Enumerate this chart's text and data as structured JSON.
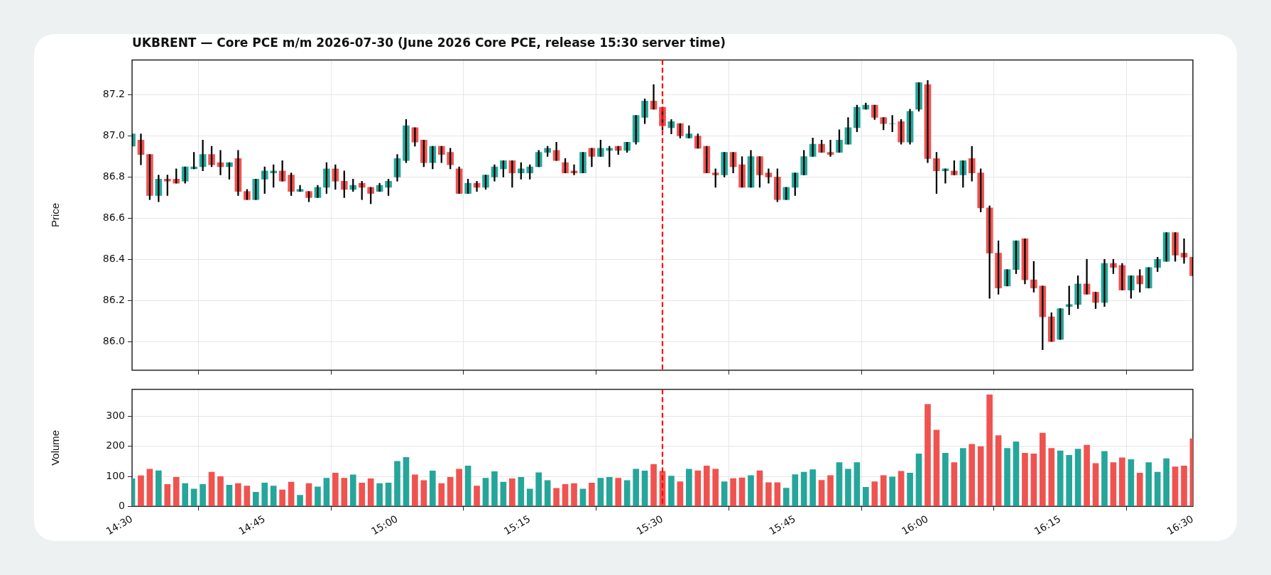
{
  "chart_data": [
    {
      "type": "candlestick",
      "title": "UKBRENT — Core PCE m/m 2026-07-30 (June 2026 Core PCE, release 15:30 server time)",
      "ylabel": "Price",
      "x": [
        "2026-07-30T14:30",
        "2026-07-30T14:31",
        "2026-07-30T14:32",
        "2026-07-30T14:33",
        "2026-07-30T14:34",
        "2026-07-30T14:35",
        "2026-07-30T14:36",
        "2026-07-30T14:37",
        "2026-07-30T14:38",
        "2026-07-30T14:39",
        "2026-07-30T14:40",
        "2026-07-30T14:41",
        "2026-07-30T14:42",
        "2026-07-30T14:43",
        "2026-07-30T14:44",
        "2026-07-30T14:45",
        "2026-07-30T14:46",
        "2026-07-30T14:47",
        "2026-07-30T14:48",
        "2026-07-30T14:49",
        "2026-07-30T14:50",
        "2026-07-30T14:51",
        "2026-07-30T14:52",
        "2026-07-30T14:53",
        "2026-07-30T14:54",
        "2026-07-30T14:55",
        "2026-07-30T14:56",
        "2026-07-30T14:57",
        "2026-07-30T14:58",
        "2026-07-30T14:59",
        "2026-07-30T15:00",
        "2026-07-30T15:01",
        "2026-07-30T15:02",
        "2026-07-30T15:03",
        "2026-07-30T15:04",
        "2026-07-30T15:05",
        "2026-07-30T15:06",
        "2026-07-30T15:07",
        "2026-07-30T15:08",
        "2026-07-30T15:09",
        "2026-07-30T15:10",
        "2026-07-30T15:11",
        "2026-07-30T15:12",
        "2026-07-30T15:13",
        "2026-07-30T15:14",
        "2026-07-30T15:15",
        "2026-07-30T15:16",
        "2026-07-30T15:17",
        "2026-07-30T15:18",
        "2026-07-30T15:19",
        "2026-07-30T15:20",
        "2026-07-30T15:21",
        "2026-07-30T15:22",
        "2026-07-30T15:23",
        "2026-07-30T15:24",
        "2026-07-30T15:25",
        "2026-07-30T15:26",
        "2026-07-30T15:27",
        "2026-07-30T15:28",
        "2026-07-30T15:29",
        "2026-07-30T15:30",
        "2026-07-30T15:31",
        "2026-07-30T15:32",
        "2026-07-30T15:33",
        "2026-07-30T15:34",
        "2026-07-30T15:35",
        "2026-07-30T15:36",
        "2026-07-30T15:37",
        "2026-07-30T15:38",
        "2026-07-30T15:39",
        "2026-07-30T15:40",
        "2026-07-30T15:41",
        "2026-07-30T15:42",
        "2026-07-30T15:43",
        "2026-07-30T15:44",
        "2026-07-30T15:45",
        "2026-07-30T15:46",
        "2026-07-30T15:47",
        "2026-07-30T15:48",
        "2026-07-30T15:49",
        "2026-07-30T15:50",
        "2026-07-30T15:51",
        "2026-07-30T15:52",
        "2026-07-30T15:53",
        "2026-07-30T15:54",
        "2026-07-30T15:55",
        "2026-07-30T15:56",
        "2026-07-30T15:57",
        "2026-07-30T15:58",
        "2026-07-30T15:59",
        "2026-07-30T16:00",
        "2026-07-30T16:01",
        "2026-07-30T16:02",
        "2026-07-30T16:03",
        "2026-07-30T16:04",
        "2026-07-30T16:05",
        "2026-07-30T16:06",
        "2026-07-30T16:07",
        "2026-07-30T16:08",
        "2026-07-30T16:09",
        "2026-07-30T16:10",
        "2026-07-30T16:11",
        "2026-07-30T16:12",
        "2026-07-30T16:13",
        "2026-07-30T16:14",
        "2026-07-30T16:15",
        "2026-07-30T16:16",
        "2026-07-30T16:17",
        "2026-07-30T16:18",
        "2026-07-30T16:19",
        "2026-07-30T16:20",
        "2026-07-30T16:21",
        "2026-07-30T16:22",
        "2026-07-30T16:23",
        "2026-07-30T16:24",
        "2026-07-30T16:25",
        "2026-07-30T16:26",
        "2026-07-30T16:27",
        "2026-07-30T16:28",
        "2026-07-30T16:29",
        "2026-07-30T16:30"
      ],
      "ohlc": [
        [
          86.95,
          87.01,
          86.95,
          87.01
        ],
        [
          86.98,
          87.01,
          86.86,
          86.91
        ],
        [
          86.91,
          86.91,
          86.69,
          86.71
        ],
        [
          86.71,
          86.81,
          86.68,
          86.79
        ],
        [
          86.79,
          86.81,
          86.71,
          86.78
        ],
        [
          86.79,
          86.84,
          86.77,
          86.77
        ],
        [
          86.78,
          86.85,
          86.77,
          86.85
        ],
        [
          86.84,
          86.92,
          86.84,
          86.85
        ],
        [
          86.85,
          86.98,
          86.83,
          86.91
        ],
        [
          86.91,
          86.95,
          86.85,
          86.86
        ],
        [
          86.87,
          86.93,
          86.81,
          86.85
        ],
        [
          86.85,
          86.87,
          86.79,
          86.87
        ],
        [
          86.89,
          86.93,
          86.71,
          86.73
        ],
        [
          86.73,
          86.74,
          86.69,
          86.69
        ],
        [
          86.69,
          86.79,
          86.69,
          86.79
        ],
        [
          86.79,
          86.85,
          86.72,
          86.83
        ],
        [
          86.82,
          86.86,
          86.75,
          86.83
        ],
        [
          86.83,
          86.88,
          86.78,
          86.78
        ],
        [
          86.81,
          86.82,
          86.71,
          86.73
        ],
        [
          86.73,
          86.76,
          86.73,
          86.74
        ],
        [
          86.73,
          86.73,
          86.68,
          86.7
        ],
        [
          86.7,
          86.76,
          86.7,
          86.75
        ],
        [
          86.75,
          86.87,
          86.72,
          86.84
        ],
        [
          86.84,
          86.86,
          86.74,
          86.78
        ],
        [
          86.78,
          86.83,
          86.7,
          86.74
        ],
        [
          86.74,
          86.79,
          86.73,
          86.76
        ],
        [
          86.77,
          86.78,
          86.69,
          86.75
        ],
        [
          86.75,
          86.75,
          86.67,
          86.72
        ],
        [
          86.73,
          86.77,
          86.73,
          86.76
        ],
        [
          86.75,
          86.79,
          86.71,
          86.78
        ],
        [
          86.8,
          86.91,
          86.78,
          86.89
        ],
        [
          86.88,
          87.08,
          86.87,
          87.05
        ],
        [
          87.04,
          87.04,
          86.95,
          86.97
        ],
        [
          86.98,
          86.98,
          86.85,
          86.87
        ],
        [
          86.87,
          86.95,
          86.84,
          86.95
        ],
        [
          86.95,
          86.95,
          86.87,
          86.91
        ],
        [
          86.92,
          86.94,
          86.84,
          86.86
        ],
        [
          86.84,
          86.85,
          86.72,
          86.72
        ],
        [
          86.72,
          86.79,
          86.72,
          86.77
        ],
        [
          86.77,
          86.78,
          86.73,
          86.75
        ],
        [
          86.75,
          86.81,
          86.74,
          86.81
        ],
        [
          86.8,
          86.86,
          86.78,
          86.85
        ],
        [
          86.84,
          86.88,
          86.8,
          86.88
        ],
        [
          86.88,
          86.88,
          86.75,
          86.82
        ],
        [
          86.82,
          86.87,
          86.79,
          86.84
        ],
        [
          86.82,
          86.86,
          86.79,
          86.85
        ],
        [
          86.85,
          86.93,
          86.85,
          86.92
        ],
        [
          86.92,
          86.95,
          86.9,
          86.94
        ],
        [
          86.93,
          86.97,
          86.88,
          86.88
        ],
        [
          86.87,
          86.89,
          86.82,
          86.82
        ],
        [
          86.83,
          86.86,
          86.81,
          86.82
        ],
        [
          86.82,
          86.92,
          86.82,
          86.92
        ],
        [
          86.94,
          86.94,
          86.85,
          86.9
        ],
        [
          86.9,
          86.98,
          86.9,
          86.94
        ],
        [
          86.93,
          86.95,
          86.85,
          86.94
        ],
        [
          86.95,
          86.95,
          86.91,
          86.93
        ],
        [
          86.93,
          86.97,
          86.92,
          86.97
        ],
        [
          86.97,
          87.1,
          86.96,
          87.1
        ],
        [
          87.09,
          87.18,
          87.06,
          87.17
        ],
        [
          87.17,
          87.25,
          87.13,
          87.13
        ],
        [
          87.14,
          87.14,
          87.03,
          87.05
        ],
        [
          87.04,
          87.08,
          87.01,
          87.07
        ],
        [
          87.06,
          87.06,
          86.99,
          87.0
        ],
        [
          86.99,
          87.05,
          86.99,
          87.01
        ],
        [
          87.0,
          87.01,
          86.94,
          86.94
        ],
        [
          86.95,
          86.95,
          86.82,
          86.82
        ],
        [
          86.82,
          86.84,
          86.75,
          86.81
        ],
        [
          86.81,
          86.92,
          86.8,
          86.92
        ],
        [
          86.92,
          86.92,
          86.82,
          86.85
        ],
        [
          86.86,
          86.9,
          86.75,
          86.75
        ],
        [
          86.75,
          86.93,
          86.75,
          86.9
        ],
        [
          86.9,
          86.9,
          86.75,
          86.81
        ],
        [
          86.82,
          86.84,
          86.77,
          86.8
        ],
        [
          86.8,
          86.84,
          86.68,
          86.69
        ],
        [
          86.69,
          86.75,
          86.69,
          86.75
        ],
        [
          86.75,
          86.82,
          86.71,
          86.82
        ],
        [
          86.81,
          86.93,
          86.81,
          86.9
        ],
        [
          86.9,
          86.99,
          86.9,
          86.96
        ],
        [
          86.96,
          86.98,
          86.92,
          86.92
        ],
        [
          86.92,
          86.98,
          86.9,
          86.91
        ],
        [
          86.92,
          87.03,
          86.92,
          86.98
        ],
        [
          86.96,
          87.09,
          86.96,
          87.04
        ],
        [
          87.04,
          87.15,
          87.02,
          87.14
        ],
        [
          87.13,
          87.16,
          87.13,
          87.15
        ],
        [
          87.15,
          87.15,
          87.08,
          87.09
        ],
        [
          87.09,
          87.09,
          87.03,
          87.06
        ],
        [
          87.06,
          87.1,
          87.02,
          87.06
        ],
        [
          87.07,
          87.08,
          86.96,
          86.97
        ],
        [
          86.97,
          87.13,
          86.96,
          87.12
        ],
        [
          87.13,
          87.26,
          87.12,
          87.26
        ],
        [
          87.25,
          87.27,
          86.87,
          86.89
        ],
        [
          86.89,
          86.92,
          86.72,
          86.83
        ],
        [
          86.83,
          86.84,
          86.77,
          86.84
        ],
        [
          86.83,
          86.88,
          86.81,
          86.81
        ],
        [
          86.81,
          86.88,
          86.75,
          86.88
        ],
        [
          86.89,
          86.95,
          86.78,
          86.82
        ],
        [
          86.82,
          86.84,
          86.63,
          86.65
        ],
        [
          86.65,
          86.66,
          86.21,
          86.43
        ],
        [
          86.43,
          86.49,
          86.23,
          86.26
        ],
        [
          86.27,
          86.35,
          86.27,
          86.35
        ],
        [
          86.35,
          86.49,
          86.33,
          86.49
        ],
        [
          86.5,
          86.5,
          86.28,
          86.3
        ],
        [
          86.3,
          86.39,
          86.24,
          86.26
        ],
        [
          86.27,
          86.27,
          85.96,
          86.12
        ],
        [
          86.12,
          86.14,
          86.0,
          86.0
        ],
        [
          86.01,
          86.16,
          86.01,
          86.16
        ],
        [
          86.17,
          86.27,
          86.13,
          86.18
        ],
        [
          86.18,
          86.32,
          86.16,
          86.28
        ],
        [
          86.28,
          86.4,
          86.23,
          86.23
        ],
        [
          86.24,
          86.24,
          86.16,
          86.19
        ],
        [
          86.19,
          86.4,
          86.17,
          86.38
        ],
        [
          86.38,
          86.4,
          86.33,
          86.36
        ],
        [
          86.37,
          86.38,
          86.25,
          86.25
        ],
        [
          86.25,
          86.32,
          86.21,
          86.32
        ],
        [
          86.32,
          86.35,
          86.24,
          86.28
        ],
        [
          86.26,
          86.36,
          86.26,
          86.36
        ],
        [
          86.36,
          86.41,
          86.34,
          86.4
        ],
        [
          86.39,
          86.53,
          86.39,
          86.53
        ],
        [
          86.53,
          86.53,
          86.39,
          86.42
        ],
        [
          86.43,
          86.5,
          86.38,
          86.41
        ],
        [
          86.41,
          86.41,
          86.32,
          86.32
        ]
      ],
      "colors": [
        "#26a69a",
        "#ef5350",
        "#ef5350",
        "#26a69a",
        "#ef5350",
        "#ef5350",
        "#26a69a",
        "#26a69a",
        "#26a69a",
        "#ef5350",
        "#ef5350",
        "#26a69a",
        "#ef5350",
        "#ef5350",
        "#26a69a",
        "#26a69a",
        "#26a69a",
        "#ef5350",
        "#ef5350",
        "#26a69a",
        "#ef5350",
        "#26a69a",
        "#26a69a",
        "#ef5350",
        "#ef5350",
        "#26a69a",
        "#ef5350",
        "#ef5350",
        "#26a69a",
        "#26a69a",
        "#26a69a",
        "#26a69a",
        "#ef5350",
        "#ef5350",
        "#26a69a",
        "#ef5350",
        "#ef5350",
        "#ef5350",
        "#26a69a",
        "#ef5350",
        "#26a69a",
        "#26a69a",
        "#26a69a",
        "#ef5350",
        "#26a69a",
        "#26a69a",
        "#26a69a",
        "#26a69a",
        "#ef5350",
        "#ef5350",
        "#ef5350",
        "#26a69a",
        "#ef5350",
        "#26a69a",
        "#26a69a",
        "#ef5350",
        "#26a69a",
        "#26a69a",
        "#26a69a",
        "#ef5350",
        "#ef5350",
        "#26a69a",
        "#ef5350",
        "#26a69a",
        "#ef5350",
        "#ef5350",
        "#ef5350",
        "#26a69a",
        "#ef5350",
        "#ef5350",
        "#26a69a",
        "#ef5350",
        "#ef5350",
        "#ef5350",
        "#26a69a",
        "#26a69a",
        "#26a69a",
        "#26a69a",
        "#ef5350",
        "#ef5350",
        "#26a69a",
        "#26a69a",
        "#26a69a",
        "#26a69a",
        "#ef5350",
        "#ef5350",
        "#26a69a",
        "#ef5350",
        "#26a69a",
        "#26a69a",
        "#ef5350",
        "#ef5350",
        "#26a69a",
        "#ef5350",
        "#26a69a",
        "#ef5350",
        "#ef5350",
        "#ef5350",
        "#ef5350",
        "#26a69a",
        "#26a69a",
        "#ef5350",
        "#ef5350",
        "#ef5350",
        "#ef5350",
        "#26a69a",
        "#26a69a",
        "#26a69a",
        "#ef5350",
        "#ef5350",
        "#26a69a",
        "#ef5350",
        "#ef5350",
        "#26a69a",
        "#ef5350",
        "#26a69a",
        "#26a69a",
        "#26a69a",
        "#ef5350",
        "#ef5350",
        "#ef5350"
      ],
      "xlim": [
        "2026-07-30T14:30",
        "2026-07-30T16:30"
      ],
      "xticks": [
        {
          "value": "2026-07-30T14:30",
          "label": null
        },
        {
          "value": "2026-07-30T14:45",
          "label": null
        },
        {
          "value": "2026-07-30T15:00",
          "label": null
        },
        {
          "value": "2026-07-30T15:15",
          "label": null
        },
        {
          "value": "2026-07-30T15:30",
          "label": null
        },
        {
          "value": "2026-07-30T15:45",
          "label": null
        },
        {
          "value": "2026-07-30T16:00",
          "label": null
        },
        {
          "value": "2026-07-30T16:15",
          "label": null
        },
        {
          "value": "2026-07-30T16:30",
          "label": null
        }
      ],
      "ylim": [
        85.86,
        87.37
      ],
      "yticks": [
        {
          "value": 86,
          "label": "86.0"
        },
        86.2,
        86.4,
        86.6,
        86.8,
        {
          "value": 87,
          "label": "87.0"
        },
        87.2
      ],
      "tick_labels": "y",
      "grid": true,
      "ref_lines": [
        {
          "axis": "x",
          "value": "2026-07-30T15:30",
          "color": "#ff0000",
          "line_style": "dashed"
        }
      ]
    },
    {
      "type": "bar",
      "ylabel": "Volume",
      "x": [
        "2026-07-30T14:30",
        "2026-07-30T14:31",
        "2026-07-30T14:32",
        "2026-07-30T14:33",
        "2026-07-30T14:34",
        "2026-07-30T14:35",
        "2026-07-30T14:36",
        "2026-07-30T14:37",
        "2026-07-30T14:38",
        "2026-07-30T14:39",
        "2026-07-30T14:40",
        "2026-07-30T14:41",
        "2026-07-30T14:42",
        "2026-07-30T14:43",
        "2026-07-30T14:44",
        "2026-07-30T14:45",
        "2026-07-30T14:46",
        "2026-07-30T14:47",
        "2026-07-30T14:48",
        "2026-07-30T14:49",
        "2026-07-30T14:50",
        "2026-07-30T14:51",
        "2026-07-30T14:52",
        "2026-07-30T14:53",
        "2026-07-30T14:54",
        "2026-07-30T14:55",
        "2026-07-30T14:56",
        "2026-07-30T14:57",
        "2026-07-30T14:58",
        "2026-07-30T14:59",
        "2026-07-30T15:00",
        "2026-07-30T15:01",
        "2026-07-30T15:02",
        "2026-07-30T15:03",
        "2026-07-30T15:04",
        "2026-07-30T15:05",
        "2026-07-30T15:06",
        "2026-07-30T15:07",
        "2026-07-30T15:08",
        "2026-07-30T15:09",
        "2026-07-30T15:10",
        "2026-07-30T15:11",
        "2026-07-30T15:12",
        "2026-07-30T15:13",
        "2026-07-30T15:14",
        "2026-07-30T15:15",
        "2026-07-30T15:16",
        "2026-07-30T15:17",
        "2026-07-30T15:18",
        "2026-07-30T15:19",
        "2026-07-30T15:20",
        "2026-07-30T15:21",
        "2026-07-30T15:22",
        "2026-07-30T15:23",
        "2026-07-30T15:24",
        "2026-07-30T15:25",
        "2026-07-30T15:26",
        "2026-07-30T15:27",
        "2026-07-30T15:28",
        "2026-07-30T15:29",
        "2026-07-30T15:30",
        "2026-07-30T15:31",
        "2026-07-30T15:32",
        "2026-07-30T15:33",
        "2026-07-30T15:34",
        "2026-07-30T15:35",
        "2026-07-30T15:36",
        "2026-07-30T15:37",
        "2026-07-30T15:38",
        "2026-07-30T15:39",
        "2026-07-30T15:40",
        "2026-07-30T15:41",
        "2026-07-30T15:42",
        "2026-07-30T15:43",
        "2026-07-30T15:44",
        "2026-07-30T15:45",
        "2026-07-30T15:46",
        "2026-07-30T15:47",
        "2026-07-30T15:48",
        "2026-07-30T15:49",
        "2026-07-30T15:50",
        "2026-07-30T15:51",
        "2026-07-30T15:52",
        "2026-07-30T15:53",
        "2026-07-30T15:54",
        "2026-07-30T15:55",
        "2026-07-30T15:56",
        "2026-07-30T15:57",
        "2026-07-30T15:58",
        "2026-07-30T15:59",
        "2026-07-30T16:00",
        "2026-07-30T16:01",
        "2026-07-30T16:02",
        "2026-07-30T16:03",
        "2026-07-30T16:04",
        "2026-07-30T16:05",
        "2026-07-30T16:06",
        "2026-07-30T16:07",
        "2026-07-30T16:08",
        "2026-07-30T16:09",
        "2026-07-30T16:10",
        "2026-07-30T16:11",
        "2026-07-30T16:12",
        "2026-07-30T16:13",
        "2026-07-30T16:14",
        "2026-07-30T16:15",
        "2026-07-30T16:16",
        "2026-07-30T16:17",
        "2026-07-30T16:18",
        "2026-07-30T16:19",
        "2026-07-30T16:20",
        "2026-07-30T16:21",
        "2026-07-30T16:22",
        "2026-07-30T16:23",
        "2026-07-30T16:24",
        "2026-07-30T16:25",
        "2026-07-30T16:26",
        "2026-07-30T16:27",
        "2026-07-30T16:28",
        "2026-07-30T16:29",
        "2026-07-30T16:30"
      ],
      "values": [
        92,
        102,
        124,
        119,
        73,
        97,
        76,
        58,
        73,
        114,
        99,
        71,
        76,
        68,
        47,
        78,
        68,
        55,
        81,
        37,
        76,
        65,
        94,
        111,
        94,
        105,
        78,
        92,
        76,
        78,
        150,
        163,
        105,
        86,
        118,
        76,
        97,
        124,
        135,
        68,
        94,
        116,
        81,
        92,
        97,
        58,
        112,
        86,
        60,
        73,
        76,
        58,
        78,
        94,
        97,
        94,
        86,
        124,
        118,
        140,
        117,
        101,
        82,
        124,
        119,
        135,
        124,
        82,
        93,
        95,
        103,
        119,
        79,
        79,
        61,
        106,
        114,
        122,
        87,
        103,
        146,
        124,
        146,
        64,
        82,
        103,
        98,
        117,
        111,
        175,
        340,
        254,
        177,
        146,
        193,
        207,
        199,
        372,
        236,
        193,
        215,
        177,
        175,
        244,
        193,
        185,
        170,
        191,
        204,
        143,
        183,
        146,
        162,
        156,
        111,
        146,
        114,
        159,
        132,
        135,
        225
      ],
      "colors": [
        "#26a69a",
        "#ef5350",
        "#ef5350",
        "#26a69a",
        "#ef5350",
        "#ef5350",
        "#26a69a",
        "#26a69a",
        "#26a69a",
        "#ef5350",
        "#ef5350",
        "#26a69a",
        "#ef5350",
        "#ef5350",
        "#26a69a",
        "#26a69a",
        "#26a69a",
        "#ef5350",
        "#ef5350",
        "#26a69a",
        "#ef5350",
        "#26a69a",
        "#26a69a",
        "#ef5350",
        "#ef5350",
        "#26a69a",
        "#ef5350",
        "#ef5350",
        "#26a69a",
        "#26a69a",
        "#26a69a",
        "#26a69a",
        "#ef5350",
        "#ef5350",
        "#26a69a",
        "#ef5350",
        "#ef5350",
        "#ef5350",
        "#26a69a",
        "#ef5350",
        "#26a69a",
        "#26a69a",
        "#26a69a",
        "#ef5350",
        "#26a69a",
        "#26a69a",
        "#26a69a",
        "#26a69a",
        "#ef5350",
        "#ef5350",
        "#ef5350",
        "#26a69a",
        "#ef5350",
        "#26a69a",
        "#26a69a",
        "#ef5350",
        "#26a69a",
        "#26a69a",
        "#26a69a",
        "#ef5350",
        "#ef5350",
        "#26a69a",
        "#ef5350",
        "#26a69a",
        "#ef5350",
        "#ef5350",
        "#ef5350",
        "#26a69a",
        "#ef5350",
        "#ef5350",
        "#26a69a",
        "#ef5350",
        "#ef5350",
        "#ef5350",
        "#26a69a",
        "#26a69a",
        "#26a69a",
        "#26a69a",
        "#ef5350",
        "#ef5350",
        "#26a69a",
        "#26a69a",
        "#26a69a",
        "#26a69a",
        "#ef5350",
        "#ef5350",
        "#26a69a",
        "#ef5350",
        "#26a69a",
        "#26a69a",
        "#ef5350",
        "#ef5350",
        "#26a69a",
        "#ef5350",
        "#26a69a",
        "#ef5350",
        "#ef5350",
        "#ef5350",
        "#ef5350",
        "#26a69a",
        "#26a69a",
        "#ef5350",
        "#ef5350",
        "#ef5350",
        "#ef5350",
        "#26a69a",
        "#26a69a",
        "#26a69a",
        "#ef5350",
        "#ef5350",
        "#26a69a",
        "#ef5350",
        "#ef5350",
        "#26a69a",
        "#ef5350",
        "#26a69a",
        "#26a69a",
        "#26a69a",
        "#ef5350",
        "#ef5350",
        "#ef5350"
      ],
      "xlim": [
        "2026-07-30T14:30",
        "2026-07-30T16:30"
      ],
      "xticks": [
        {
          "value": "2026-07-30T14:30",
          "label": "14:30"
        },
        {
          "value": "2026-07-30T14:45",
          "label": "14:45"
        },
        {
          "value": "2026-07-30T15:00",
          "label": "15:00"
        },
        {
          "value": "2026-07-30T15:15",
          "label": "15:15"
        },
        {
          "value": "2026-07-30T15:30",
          "label": "15:30"
        },
        {
          "value": "2026-07-30T15:45",
          "label": "15:45"
        },
        {
          "value": "2026-07-30T16:00",
          "label": "16:00"
        },
        {
          "value": "2026-07-30T16:15",
          "label": "16:15"
        },
        {
          "value": "2026-07-30T16:30",
          "label": "16:30"
        }
      ],
      "ylim": [
        0,
        390
      ],
      "yticks": [
        0,
        100,
        200,
        300
      ],
      "grid": true,
      "ref_lines": [
        {
          "axis": "x",
          "value": "2026-07-30T15:30",
          "color": "#ff0000",
          "line_style": "dashed"
        }
      ]
    }
  ]
}
